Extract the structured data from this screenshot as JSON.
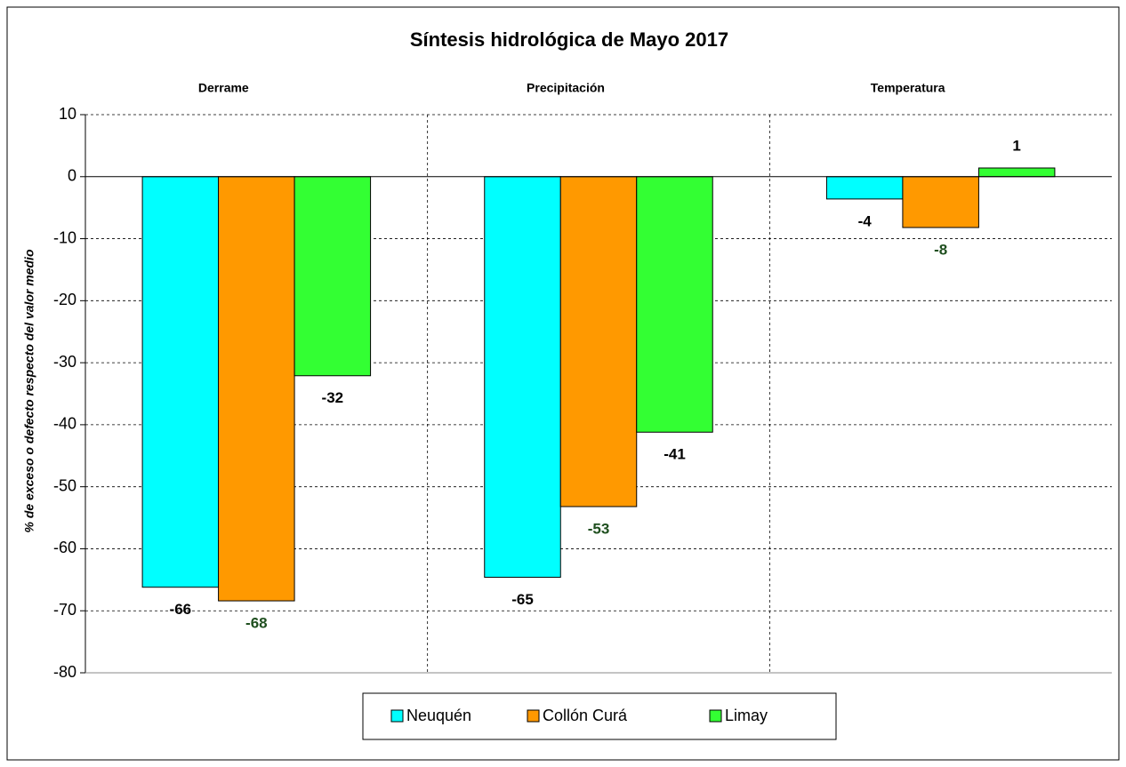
{
  "chart_data": {
    "type": "bar",
    "title": "Síntesis hidrológica de Mayo 2017",
    "y_label": "% de exceso o defecto respecto del valor medio",
    "categories": [
      "Derrame",
      "Precipitación",
      "Temperatura"
    ],
    "series": [
      {
        "name": "Neuquén",
        "color": "#00ffff",
        "label_color": "#000000",
        "values": [
          -66.2,
          -64.6,
          -3.6
        ],
        "value_labels": [
          "-66",
          "-65",
          "-4"
        ]
      },
      {
        "name": "Collón Curá",
        "color": "#ff9900",
        "label_color": "#1f4f1f",
        "values": [
          -68.4,
          -53.2,
          -8.2
        ],
        "value_labels": [
          "-68",
          "-53",
          "-8"
        ]
      },
      {
        "name": "Limay",
        "color": "#33ff33",
        "label_color": "#000000",
        "values": [
          -32.1,
          -41.2,
          1.4
        ],
        "value_labels": [
          "-32",
          "-41",
          "1"
        ]
      }
    ],
    "ylim": [
      -80,
      10
    ],
    "yticks": [
      10,
      0,
      -10,
      -20,
      -30,
      -40,
      -50,
      -60,
      -70,
      -80
    ],
    "grid": true,
    "legend": "bottom"
  }
}
